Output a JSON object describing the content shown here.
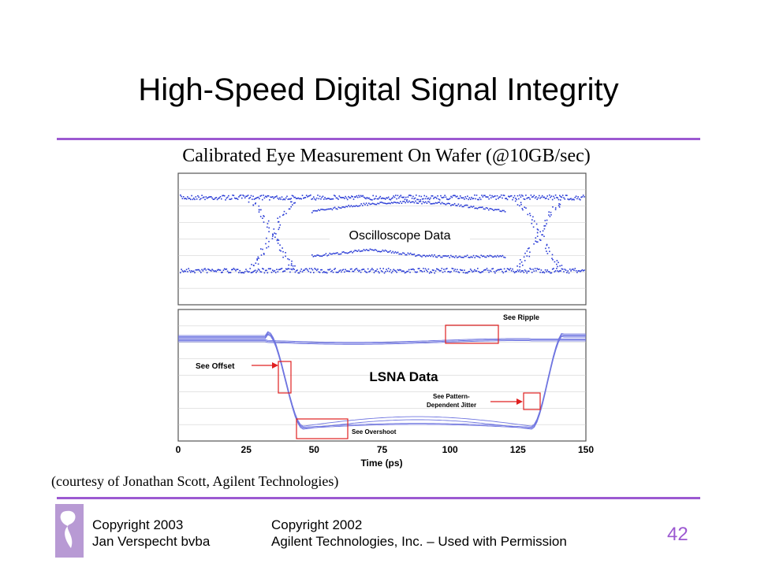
{
  "title": "High-Speed Digital Signal Integrity",
  "subtitle": "Calibrated Eye Measurement On Wafer (@10GB/sec)",
  "courtesy": "(courtesy of Jonathan Scott, Agilent Technologies)",
  "footer": {
    "copyright_left_line1": "Copyright 2003",
    "copyright_left_line2": "Jan Verspecht bvba",
    "copyright_right_line1": "Copyright 2002",
    "copyright_right_line2": "Agilent Technologies, Inc. – Used with Permission",
    "page_number": "42",
    "logo_caption": "Jan Verspecht"
  },
  "colors": {
    "accent": "#9c59d1",
    "trace": "#2a3cd6",
    "lsna_trace": "#6f75e0",
    "annotation_box": "#e02020",
    "grid": "#c8c8c8"
  },
  "chart_data": [
    {
      "type": "scatter",
      "label": "Oscilloscope Data",
      "grid": true
    },
    {
      "type": "line",
      "label": "LSNA Data",
      "xlabel": "Time (ps)",
      "x_ticks": [
        0,
        25,
        50,
        75,
        100,
        125,
        150
      ],
      "xlim": [
        0,
        150
      ],
      "grid": true,
      "annotations": [
        {
          "text": "See Ripple",
          "x_range": [
            98,
            118
          ]
        },
        {
          "text": "See Offset",
          "x_range": [
            37,
            42
          ]
        },
        {
          "text": "See Overshoot",
          "x_range": [
            44,
            63
          ]
        },
        {
          "text": "See Pattern-Dependent Jitter",
          "x_range": [
            128,
            134
          ]
        }
      ]
    }
  ]
}
